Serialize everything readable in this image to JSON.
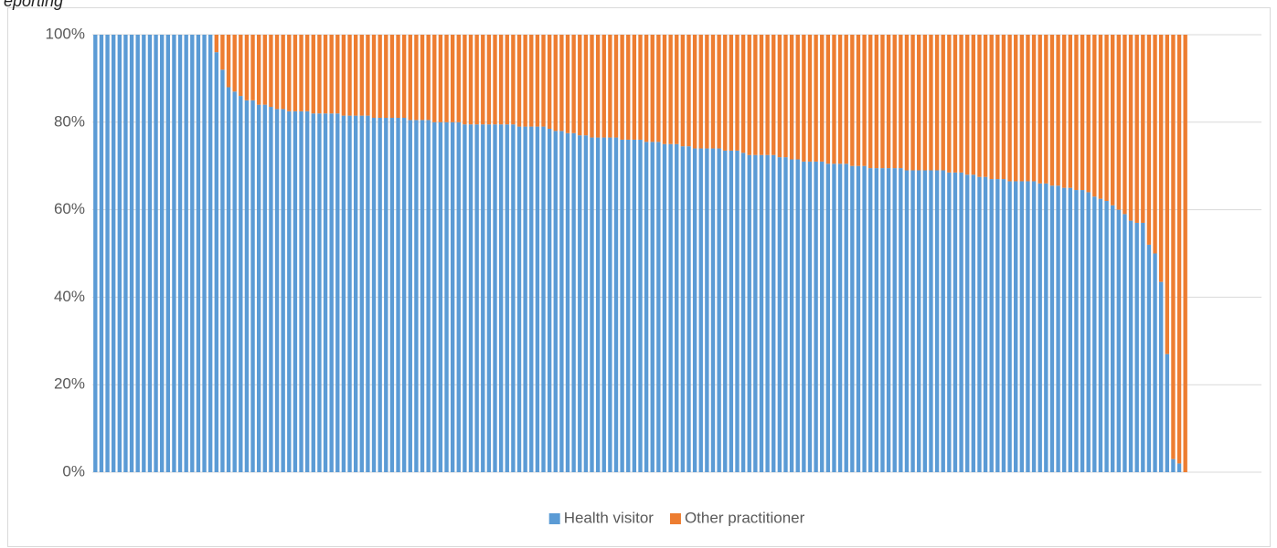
{
  "chart_data": {
    "type": "stacked_bar_100",
    "title": "eporting",
    "ylim": [
      0,
      100
    ],
    "yticks": [
      {
        "value": 0,
        "label": "0%"
      },
      {
        "value": 20,
        "label": "20%"
      },
      {
        "value": 40,
        "label": "40%"
      },
      {
        "value": 60,
        "label": "60%"
      },
      {
        "value": 80,
        "label": "80%"
      },
      {
        "value": 100,
        "label": "100%"
      }
    ],
    "grid": true,
    "legend": "bottom",
    "series": [
      {
        "name": "Health visitor",
        "color": "#5b9bd5",
        "values": [
          100,
          100,
          100,
          100,
          100,
          100,
          100,
          100,
          100,
          100,
          100,
          100,
          100,
          100,
          100,
          100,
          100,
          100,
          100,
          100,
          96,
          92,
          88,
          87,
          86,
          85,
          85,
          84,
          84,
          83.5,
          83,
          83,
          82.5,
          82.5,
          82.5,
          82.5,
          82,
          82,
          82,
          82,
          82,
          81.5,
          81.5,
          81.5,
          81.5,
          81.5,
          81,
          81,
          81,
          81,
          81,
          81,
          80.5,
          80.5,
          80.5,
          80.5,
          80,
          80,
          80,
          80,
          80,
          79.5,
          79.5,
          79.5,
          79.5,
          79.5,
          79.5,
          79.5,
          79.5,
          79.5,
          79,
          79,
          79,
          79,
          79,
          78.5,
          78,
          78,
          77.5,
          77.5,
          77,
          77,
          76.5,
          76.5,
          76.5,
          76.5,
          76.5,
          76,
          76,
          76,
          76,
          75.5,
          75.5,
          75.5,
          75,
          75,
          75,
          74.5,
          74.5,
          74,
          74,
          74,
          74,
          74,
          73.5,
          73.5,
          73.5,
          73,
          72.5,
          72.5,
          72.5,
          72.5,
          72.5,
          72,
          72,
          71.5,
          71.5,
          71,
          71,
          71,
          71,
          70.5,
          70.5,
          70.5,
          70.5,
          70,
          70,
          70,
          69.5,
          69.5,
          69.5,
          69.5,
          69.5,
          69.5,
          69,
          69,
          69,
          69,
          69,
          69,
          69,
          68.5,
          68.5,
          68.5,
          68,
          68,
          67.5,
          67.5,
          67,
          67,
          67,
          66.5,
          66.5,
          66.5,
          66.5,
          66.5,
          66,
          66,
          65.5,
          65.5,
          65,
          65,
          64.5,
          64.5,
          64,
          63,
          62.5,
          62,
          61,
          60,
          59,
          57.5,
          57,
          57,
          52,
          50,
          43.5,
          27,
          3,
          2,
          0
        ]
      },
      {
        "name": "Other practitioner",
        "color": "#ed7d31",
        "values": [
          0,
          0,
          0,
          0,
          0,
          0,
          0,
          0,
          0,
          0,
          0,
          0,
          0,
          0,
          0,
          0,
          0,
          0,
          0,
          0,
          4,
          8,
          12,
          13,
          14,
          15,
          15,
          16,
          16,
          16.5,
          17,
          17,
          17.5,
          17.5,
          17.5,
          17.5,
          18,
          18,
          18,
          18,
          18,
          18.5,
          18.5,
          18.5,
          18.5,
          18.5,
          19,
          19,
          19,
          19,
          19,
          19,
          19.5,
          19.5,
          19.5,
          19.5,
          20,
          20,
          20,
          20,
          20,
          20.5,
          20.5,
          20.5,
          20.5,
          20.5,
          20.5,
          20.5,
          20.5,
          20.5,
          21,
          21,
          21,
          21,
          21,
          21.5,
          22,
          22,
          22.5,
          22.5,
          23,
          23,
          23.5,
          23.5,
          23.5,
          23.5,
          23.5,
          24,
          24,
          24,
          24,
          24.5,
          24.5,
          24.5,
          25,
          25,
          25,
          25.5,
          25.5,
          26,
          26,
          26,
          26,
          26,
          26.5,
          26.5,
          26.5,
          27,
          27.5,
          27.5,
          27.5,
          27.5,
          27.5,
          28,
          28,
          28.5,
          28.5,
          29,
          29,
          29,
          29,
          29.5,
          29.5,
          29.5,
          29.5,
          30,
          30,
          30,
          30.5,
          30.5,
          30.5,
          30.5,
          30.5,
          30.5,
          31,
          31,
          31,
          31,
          31,
          31,
          31,
          31.5,
          31.5,
          31.5,
          32,
          32,
          32.5,
          32.5,
          33,
          33,
          33,
          33.5,
          33.5,
          33.5,
          33.5,
          33.5,
          34,
          34,
          34.5,
          34.5,
          35,
          35,
          35.5,
          35.5,
          36,
          37,
          37.5,
          38,
          39,
          40,
          41,
          42.5,
          43,
          43,
          48,
          50,
          56.5,
          73,
          97,
          98,
          100
        ]
      }
    ]
  }
}
